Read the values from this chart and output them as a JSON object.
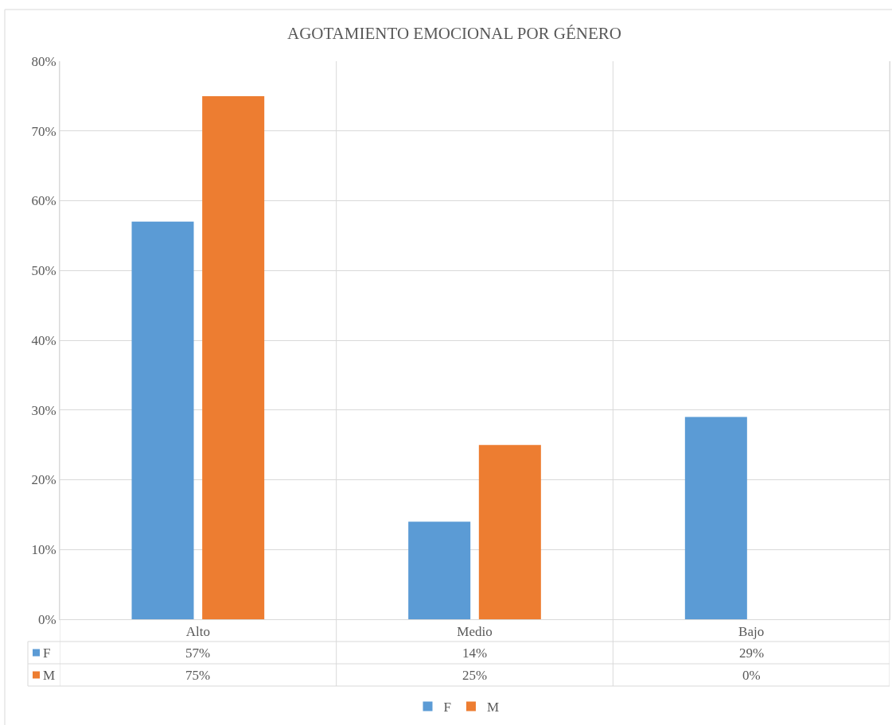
{
  "chart_data": {
    "type": "bar",
    "title": "AGOTAMIENTO EMOCIONAL POR GÉNERO",
    "categories": [
      "Alto",
      "Medio",
      "Bajo"
    ],
    "series": [
      {
        "name": "F",
        "color": "#5b9bd5",
        "values": [
          57,
          14,
          29
        ],
        "value_labels": [
          "57%",
          "14%",
          "29%"
        ]
      },
      {
        "name": "M",
        "color": "#ed7d31",
        "values": [
          75,
          25,
          0
        ],
        "value_labels": [
          "75%",
          "25%",
          "0%"
        ]
      }
    ],
    "ylim": [
      0,
      80
    ],
    "yticks": [
      {
        "value": 0,
        "label": "0%"
      },
      {
        "value": 10,
        "label": "10%"
      },
      {
        "value": 20,
        "label": "20%"
      },
      {
        "value": 30,
        "label": "30%"
      },
      {
        "value": 40,
        "label": "40%"
      },
      {
        "value": 50,
        "label": "50%"
      },
      {
        "value": 60,
        "label": "60%"
      },
      {
        "value": 70,
        "label": "70%"
      },
      {
        "value": 80,
        "label": "80%"
      }
    ],
    "grid": true,
    "legend": "bottom"
  }
}
